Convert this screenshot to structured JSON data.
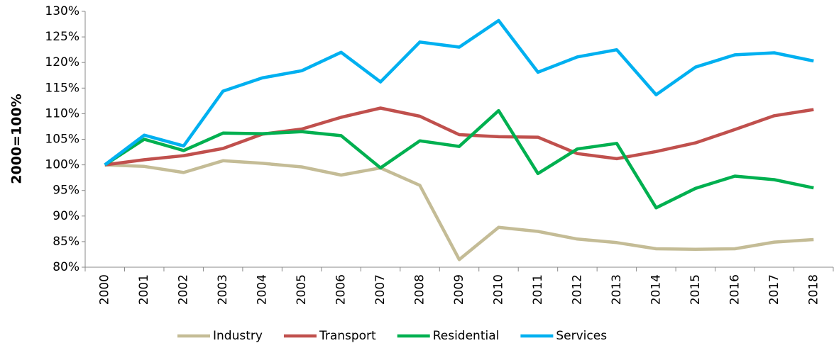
{
  "chart_data": {
    "type": "line",
    "y_label": "2000=100%",
    "categories": [
      "2000",
      "2001",
      "2002",
      "2003",
      "2004",
      "2005",
      "2006",
      "2007",
      "2008",
      "2009",
      "2010",
      "2011",
      "2012",
      "2013",
      "2014",
      "2015",
      "2016",
      "2017",
      "2018"
    ],
    "series": [
      {
        "name": "Industry",
        "color": "#c4bc96",
        "values": [
          100,
          99.7,
          98.5,
          100.8,
          100.3,
          99.6,
          98,
          99.4,
          96,
          81.5,
          87.8,
          87,
          85.5,
          84.8,
          83.6,
          83.5,
          83.6,
          84.9,
          85.4
        ]
      },
      {
        "name": "Transport",
        "color": "#c0504d",
        "values": [
          100,
          101,
          101.8,
          103.2,
          106,
          107,
          109.3,
          111.1,
          109.5,
          105.9,
          105.5,
          105.4,
          102.2,
          101.2,
          102.6,
          104.3,
          106.9,
          109.6,
          110.8
        ]
      },
      {
        "name": "Residential",
        "color": "#00b050",
        "values": [
          100,
          105,
          102.8,
          106.2,
          106.1,
          106.5,
          105.7,
          99.4,
          104.7,
          103.6,
          110.6,
          98.3,
          103.1,
          104.2,
          91.6,
          95.4,
          97.8,
          97.1,
          95.5
        ]
      },
      {
        "name": "Services",
        "color": "#00b0f0",
        "values": [
          100,
          105.8,
          103.7,
          114.4,
          117,
          118.4,
          122,
          116.2,
          124,
          123,
          128.2,
          118.1,
          121.1,
          122.5,
          113.7,
          119.1,
          121.5,
          121.9,
          120.3
        ]
      }
    ],
    "ylim": [
      80,
      130
    ],
    "yticks": [
      {
        "value": 80,
        "label": "80%"
      },
      {
        "value": 85,
        "label": "85%"
      },
      {
        "value": 90,
        "label": "90%"
      },
      {
        "value": 95,
        "label": "95%"
      },
      {
        "value": 100,
        "label": "100%"
      },
      {
        "value": 105,
        "label": "105%"
      },
      {
        "value": 110,
        "label": "110%"
      },
      {
        "value": 115,
        "label": "115%"
      },
      {
        "value": 120,
        "label": "120%"
      },
      {
        "value": 125,
        "label": "125%"
      },
      {
        "value": 130,
        "label": "130%"
      }
    ],
    "legend": "bottom"
  }
}
